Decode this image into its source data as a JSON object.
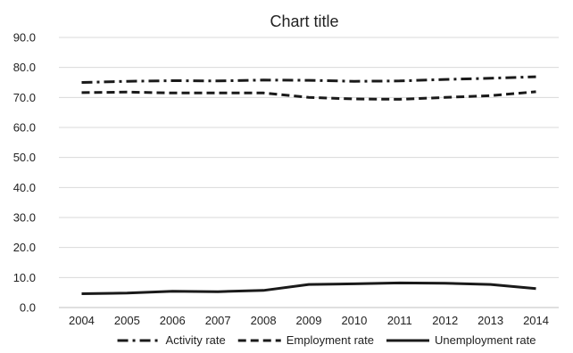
{
  "chart_data": {
    "type": "line",
    "title": "Chart title",
    "xlabel": "",
    "ylabel": "",
    "x": [
      "2004",
      "2005",
      "2006",
      "2007",
      "2008",
      "2009",
      "2010",
      "2011",
      "2012",
      "2013",
      "2014"
    ],
    "ylim": [
      0,
      90
    ],
    "yticks": [
      "0.0",
      "10.0",
      "20.0",
      "30.0",
      "40.0",
      "50.0",
      "60.0",
      "70.0",
      "80.0",
      "90.0"
    ],
    "grid": true,
    "legend_position": "bottom",
    "series": [
      {
        "name": "Activity rate",
        "style": "dash-dot",
        "color": "#1a1a1a",
        "values": [
          75.0,
          75.4,
          75.6,
          75.5,
          75.8,
          75.7,
          75.4,
          75.5,
          76.0,
          76.4,
          76.9
        ]
      },
      {
        "name": "Employment rate",
        "style": "dashed",
        "color": "#1a1a1a",
        "values": [
          71.6,
          71.8,
          71.5,
          71.5,
          71.5,
          70.0,
          69.5,
          69.4,
          70.0,
          70.6,
          71.9
        ]
      },
      {
        "name": "Unemployment rate",
        "style": "solid",
        "color": "#1a1a1a",
        "values": [
          4.6,
          4.8,
          5.4,
          5.3,
          5.7,
          7.7,
          7.9,
          8.2,
          8.1,
          7.7,
          6.3
        ]
      }
    ]
  }
}
